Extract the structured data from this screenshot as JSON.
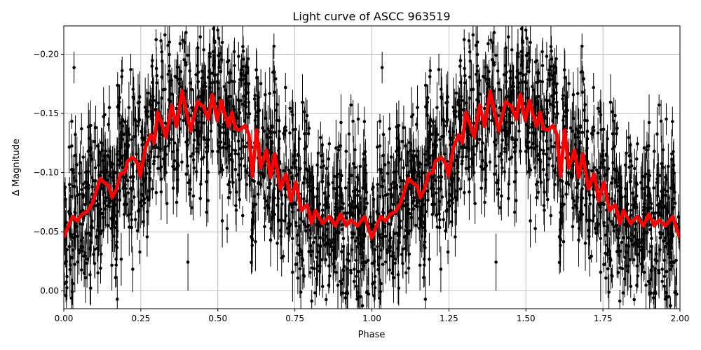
{
  "chart_data": {
    "type": "scatter",
    "title": "Light curve of ASCC 963519",
    "xlabel": "Phase",
    "ylabel": "Δ Magnitude",
    "xlim": [
      0,
      2
    ],
    "ylim": [
      0.015,
      -0.224
    ],
    "y_inverted": true,
    "grid": true,
    "xticks": [
      0,
      0.25,
      0.5,
      0.75,
      1.0,
      1.25,
      1.5,
      1.75,
      2.0
    ],
    "xtick_labels": [
      "0.00",
      "0.25",
      "0.50",
      "0.75",
      "1.00",
      "1.25",
      "1.50",
      "1.75",
      "2.00"
    ],
    "yticks": [
      -0.2,
      -0.15,
      -0.1,
      -0.05,
      0.0
    ],
    "ytick_labels": [
      "−0.20",
      "−0.15",
      "−0.10",
      "−0.05",
      "0.00"
    ],
    "colors": {
      "points": "#000000",
      "model": "#ff0000",
      "grid": "#b0b0b0"
    },
    "series": [
      {
        "kind": "points-with-errorbars",
        "color": "#000000"
      },
      {
        "kind": "line",
        "color": "#ff0000",
        "x": [
          0.0,
          0.02,
          0.03,
          0.043,
          0.061,
          0.077,
          0.093,
          0.111,
          0.118,
          0.134,
          0.146,
          0.157,
          0.171,
          0.184,
          0.198,
          0.207,
          0.225,
          0.241,
          0.248,
          0.266,
          0.282,
          0.294,
          0.305,
          0.321,
          0.332,
          0.35,
          0.366,
          0.384,
          0.396,
          0.412,
          0.434,
          0.453,
          0.469,
          0.482,
          0.498,
          0.512,
          0.521,
          0.535,
          0.546,
          0.557,
          0.571,
          0.589,
          0.601,
          0.612,
          0.626,
          0.639,
          0.658,
          0.671,
          0.685,
          0.703,
          0.721,
          0.737,
          0.753,
          0.771,
          0.79,
          0.805,
          0.817,
          0.84,
          0.862,
          0.881,
          0.899,
          0.917,
          0.931,
          0.953,
          0.976,
          0.999,
          1.0,
          1.02,
          1.03,
          1.043,
          1.061,
          1.077,
          1.093,
          1.111,
          1.118,
          1.134,
          1.146,
          1.157,
          1.171,
          1.184,
          1.198,
          1.207,
          1.225,
          1.241,
          1.248,
          1.266,
          1.282,
          1.294,
          1.305,
          1.321,
          1.332,
          1.35,
          1.366,
          1.384,
          1.396,
          1.412,
          1.434,
          1.453,
          1.469,
          1.482,
          1.498,
          1.512,
          1.521,
          1.535,
          1.546,
          1.557,
          1.571,
          1.589,
          1.601,
          1.612,
          1.626,
          1.639,
          1.658,
          1.671,
          1.685,
          1.703,
          1.721,
          1.737,
          1.753,
          1.771,
          1.79,
          1.805,
          1.817,
          1.84,
          1.862,
          1.881,
          1.899,
          1.917,
          1.931,
          1.953,
          1.976,
          1.999
        ],
        "y": [
          -0.045,
          -0.058,
          -0.063,
          -0.059,
          -0.065,
          -0.067,
          -0.074,
          -0.089,
          -0.095,
          -0.091,
          -0.089,
          -0.079,
          -0.086,
          -0.099,
          -0.1,
          -0.11,
          -0.113,
          -0.107,
          -0.097,
          -0.122,
          -0.132,
          -0.125,
          -0.151,
          -0.139,
          -0.13,
          -0.157,
          -0.139,
          -0.169,
          -0.154,
          -0.135,
          -0.16,
          -0.156,
          -0.145,
          -0.166,
          -0.144,
          -0.161,
          -0.151,
          -0.139,
          -0.151,
          -0.137,
          -0.136,
          -0.14,
          -0.132,
          -0.097,
          -0.136,
          -0.104,
          -0.119,
          -0.096,
          -0.116,
          -0.086,
          -0.099,
          -0.076,
          -0.092,
          -0.068,
          -0.073,
          -0.057,
          -0.068,
          -0.057,
          -0.063,
          -0.055,
          -0.065,
          -0.055,
          -0.06,
          -0.055,
          -0.063,
          -0.045,
          -0.045,
          -0.058,
          -0.063,
          -0.059,
          -0.065,
          -0.067,
          -0.074,
          -0.089,
          -0.095,
          -0.091,
          -0.089,
          -0.079,
          -0.086,
          -0.099,
          -0.1,
          -0.11,
          -0.113,
          -0.107,
          -0.097,
          -0.122,
          -0.132,
          -0.125,
          -0.151,
          -0.139,
          -0.13,
          -0.157,
          -0.139,
          -0.169,
          -0.154,
          -0.135,
          -0.16,
          -0.156,
          -0.145,
          -0.166,
          -0.144,
          -0.161,
          -0.151,
          -0.139,
          -0.151,
          -0.137,
          -0.136,
          -0.14,
          -0.132,
          -0.097,
          -0.136,
          -0.104,
          -0.119,
          -0.096,
          -0.116,
          -0.086,
          -0.099,
          -0.076,
          -0.092,
          -0.068,
          -0.073,
          -0.057,
          -0.068,
          -0.057,
          -0.063,
          -0.055,
          -0.065,
          -0.055,
          -0.06,
          -0.055,
          -0.063,
          -0.045
        ]
      }
    ]
  }
}
